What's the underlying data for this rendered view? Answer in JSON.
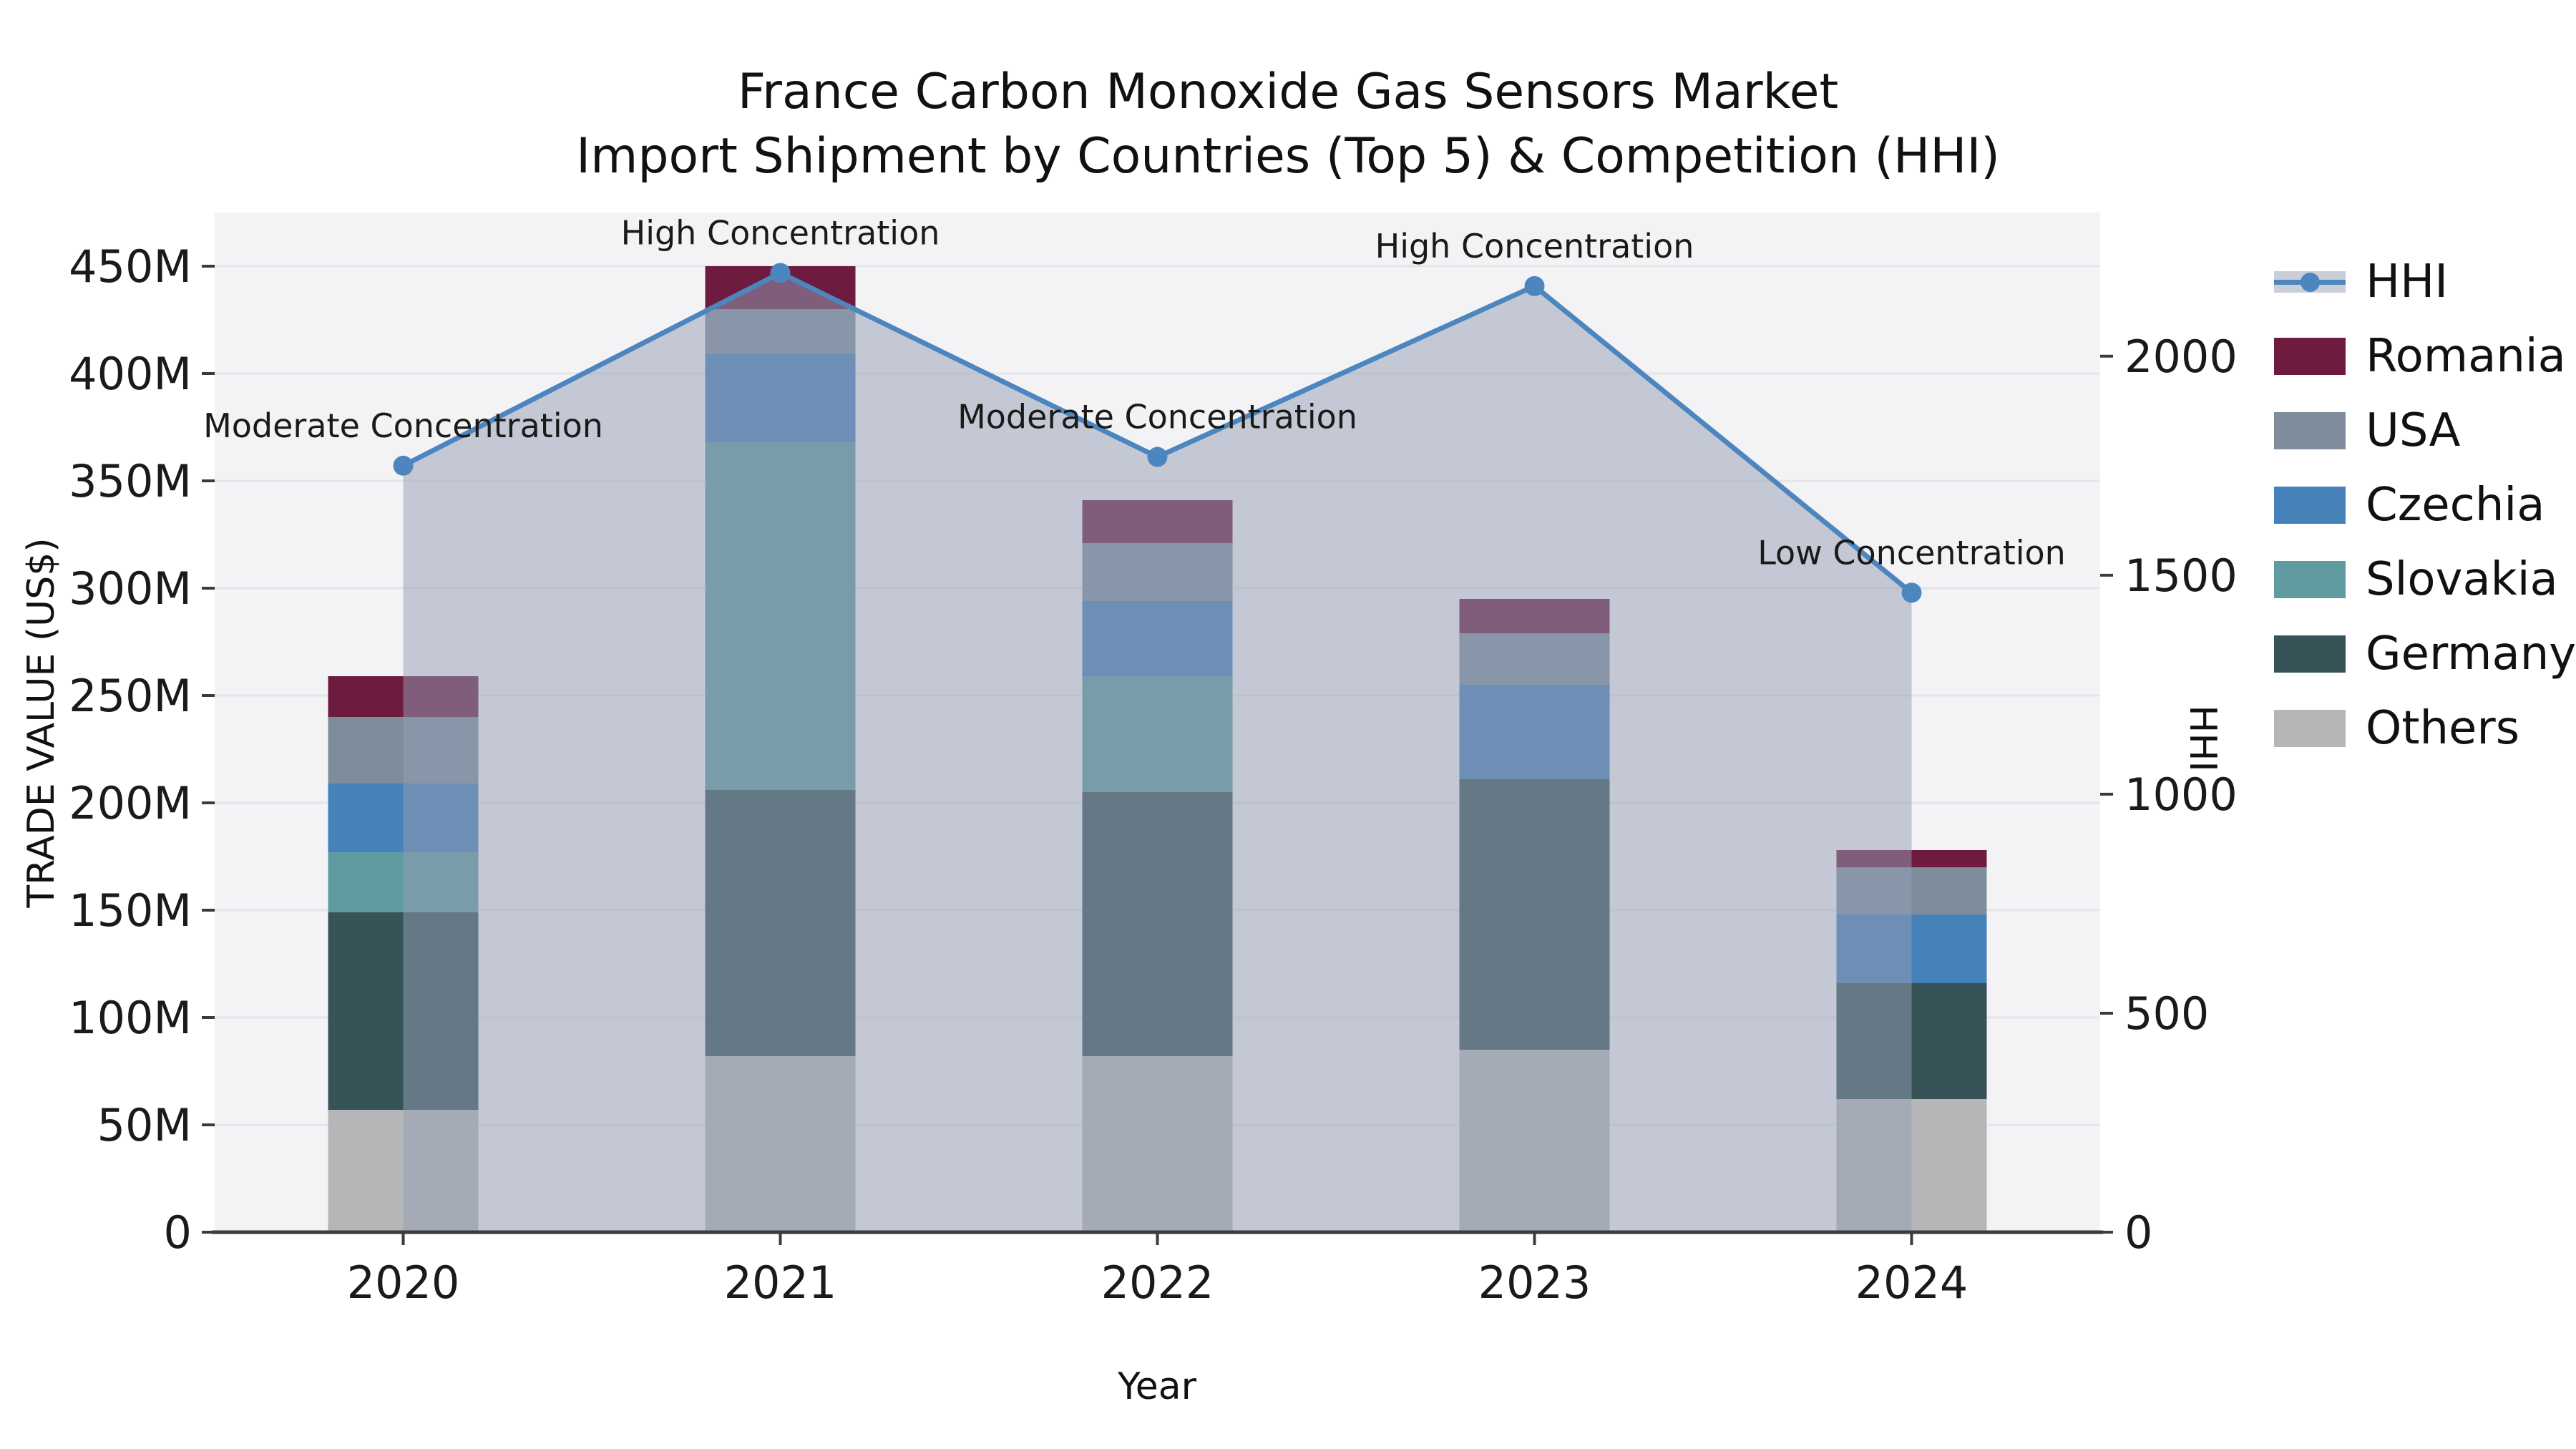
{
  "title": {
    "line1": "France Carbon Monoxide Gas Sensors Market",
    "line2": "Import Shipment by Countries (Top 5) & Competition (HHI)"
  },
  "axis_labels": {
    "y_left": "TRADE VALUE (US$)",
    "x": "Year",
    "y_right": "HHI"
  },
  "legend": {
    "items": [
      "HHI",
      "Romania",
      "USA",
      "Czechia",
      "Slovakia",
      "Germany",
      "Others"
    ]
  },
  "colors": {
    "hhi_line": "#4d86bf",
    "hhi_fill": "rgba(147,157,179,0.5)",
    "plot_bg": "#f3f3f5",
    "grid": "#e4e5e9",
    "axis": "#3b3b3b",
    "text": "#1a1a1a"
  },
  "chart_data": {
    "type": "bar+line",
    "title": "France Carbon Monoxide Gas Sensors Market — Import Shipment by Countries (Top 5) & Competition (HHI)",
    "categories": [
      "2020",
      "2021",
      "2022",
      "2023",
      "2024"
    ],
    "stacking": "bottom-to-top",
    "series": [
      {
        "name": "Others",
        "color": "#b4b6b8",
        "values": [
          57,
          82,
          82,
          85,
          62
        ]
      },
      {
        "name": "Germany",
        "color": "#365358",
        "values": [
          92,
          124,
          123,
          126,
          54
        ]
      },
      {
        "name": "Slovakia",
        "color": "#5f9ba0",
        "values": [
          28,
          162,
          54,
          0,
          0
        ]
      },
      {
        "name": "Czechia",
        "color": "#4681b9",
        "values": [
          32,
          41,
          35,
          44,
          32
        ]
      },
      {
        "name": "USA",
        "color": "#7e8c9c",
        "values": [
          31,
          21,
          27,
          24,
          22
        ]
      },
      {
        "name": "Romania",
        "color": "#6d1c40",
        "values": [
          19,
          20,
          20,
          16,
          8
        ]
      }
    ],
    "bar_totals_M": [
      259,
      450,
      341,
      295,
      178
    ],
    "line": {
      "name": "HHI",
      "values": [
        1750,
        2190,
        1770,
        2160,
        1460
      ],
      "area_fill": true
    },
    "annotations": [
      "Moderate Concentration",
      "High Concentration",
      "Moderate Concentration",
      "High Concentration",
      "Low Concentration"
    ],
    "xlabel": "Year",
    "y_left": {
      "label": "TRADE VALUE (US$)",
      "tick_labels": [
        "0",
        "50M",
        "100M",
        "150M",
        "200M",
        "250M",
        "300M",
        "350M",
        "400M",
        "450M"
      ],
      "tick_values": [
        0,
        50,
        100,
        150,
        200,
        250,
        300,
        350,
        400,
        450
      ],
      "lim": [
        0,
        475
      ]
    },
    "y_right": {
      "label": "HHI",
      "tick_values": [
        0,
        500,
        1000,
        1500,
        2000
      ],
      "lim": [
        0,
        2328
      ]
    },
    "grid": "horizontal",
    "legend_position": "right-outside"
  }
}
